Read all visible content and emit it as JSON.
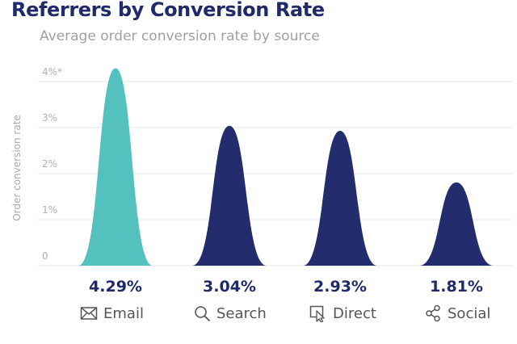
{
  "chart_data": {
    "type": "area",
    "title": "Referrers by Conversion Rate",
    "subtitle": "Average order conversion rate by source",
    "ylabel": "Order conversion rate",
    "xlabel": "",
    "ylim": [
      0,
      4
    ],
    "y_ticks": [
      "0",
      "1%",
      "2%",
      "3%",
      "4%*"
    ],
    "grid": true,
    "categories": [
      "Email",
      "Search",
      "Direct",
      "Social"
    ],
    "values": [
      4.29,
      3.04,
      2.93,
      1.81
    ],
    "value_labels": [
      "4.29%",
      "3.04%",
      "2.93%",
      "1.81%"
    ],
    "colors": [
      "#55c1bf",
      "#232d6d",
      "#232d6d",
      "#232d6d"
    ],
    "icons": [
      "envelope-icon",
      "magnifier-icon",
      "cursor-icon",
      "share-icon"
    ]
  },
  "colors": {
    "title": "#1e2a69",
    "grid": "#e4e4e4",
    "tick_text": "#b0b0b0",
    "value_text": "#1e2a69"
  }
}
